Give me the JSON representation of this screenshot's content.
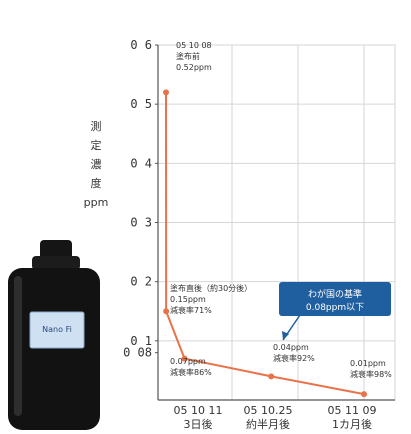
{
  "chart_data": {
    "type": "line",
    "title": "",
    "ylabel_lines": [
      "測",
      "定",
      "濃",
      "度",
      "ppm"
    ],
    "ylim": [
      0,
      0.6
    ],
    "y_ticks": [
      {
        "value": 0,
        "label": ""
      },
      {
        "value": 0.08,
        "label": "0.08"
      },
      {
        "value": 0.1,
        "label": "0.1"
      },
      {
        "value": 0.2,
        "label": "0.2"
      },
      {
        "value": 0.3,
        "label": "0.3"
      },
      {
        "value": 0.4,
        "label": "0.4"
      },
      {
        "value": 0.5,
        "label": "0.5"
      },
      {
        "value": 0.6,
        "label": "0.6"
      }
    ],
    "x_ticks": [
      {
        "label": "05 10 11",
        "sub": "3日後"
      },
      {
        "label": "05 10.25",
        "sub": "約半月後"
      },
      {
        "label": "05 11 09",
        "sub": "1カ月後"
      }
    ],
    "series": [
      {
        "color": "#e8734a",
        "points": [
          {
            "x": "2005-10-08",
            "y": 0.52
          },
          {
            "x": "2005-10-08 00:30",
            "y": 0.15
          },
          {
            "x": "2005-10-11",
            "y": 0.07
          },
          {
            "x": "2005-10-25",
            "y": 0.04
          },
          {
            "x": "2005-11-09",
            "y": 0.01
          }
        ]
      }
    ],
    "annotations": [
      {
        "lines": [
          "05 10 08",
          "塗布前",
          "0.52ppm"
        ]
      },
      {
        "lines": [
          "塗布直後（約30分後）",
          "0.15ppm",
          "減衰率71%"
        ]
      },
      {
        "lines": [
          "0.07ppm",
          "減衰率86%"
        ]
      },
      {
        "lines": [
          "0.04ppm",
          "減衰率92%"
        ]
      },
      {
        "lines": [
          "0.01ppm",
          "減衰率98%"
        ]
      }
    ],
    "reference_label": [
      "わが国の基準",
      "0.08ppm以下"
    ],
    "grid": true,
    "colors": {
      "line": "#e8734a",
      "grid": "#d6d6d6",
      "badge": "#1f5fa0"
    }
  },
  "product": {
    "label": "Nano Fi"
  }
}
